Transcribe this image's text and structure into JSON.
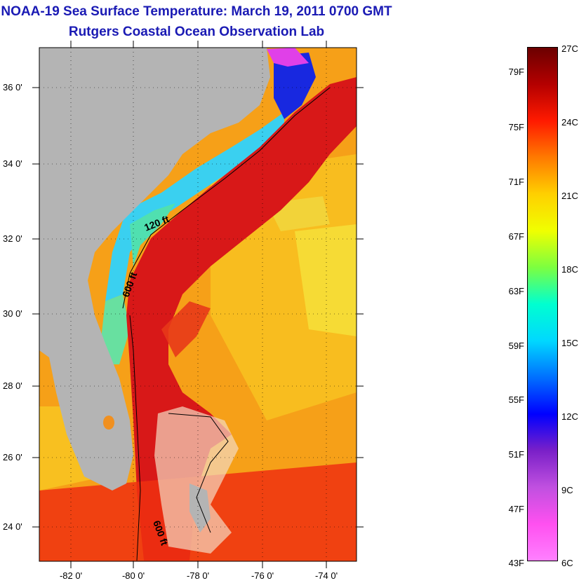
{
  "header": {
    "title": "NOAA-19 Sea Surface Temperature:  March 19, 2011 0700 GMT",
    "subtitle": "Rutgers Coastal Ocean Observation Lab"
  },
  "map": {
    "latitude_labels": [
      "36 0'",
      "34 0'",
      "32 0'",
      "30 0'",
      "28 0'",
      "26 0'",
      "24 0'"
    ],
    "longitude_labels": [
      "-82 0'",
      "-80 0'",
      "-78 0'",
      "-76 0'",
      "-74 0'"
    ],
    "contour_labels": [
      "120 ft",
      "600 ft",
      "600 ft"
    ],
    "land_color": "#b4b4b4",
    "gulf_stream_color": "#d81818"
  },
  "colorbar": {
    "fahrenheit_labels": [
      "79F",
      "75F",
      "71F",
      "67F",
      "63F",
      "59F",
      "55F",
      "51F",
      "47F",
      "43F"
    ],
    "celsius_labels": [
      "27C",
      "24C",
      "21C",
      "18C",
      "15C",
      "12C",
      "9C",
      "6C"
    ],
    "gradient_colors": [
      "#6b0000",
      "#b40000",
      "#ff1a00",
      "#ff7a00",
      "#ffd000",
      "#f0ff00",
      "#7cff40",
      "#00ffd0",
      "#00d8ff",
      "#0070ff",
      "#0000ff",
      "#7a20c8",
      "#c050e0",
      "#ff50f0",
      "#ff80ff"
    ]
  }
}
